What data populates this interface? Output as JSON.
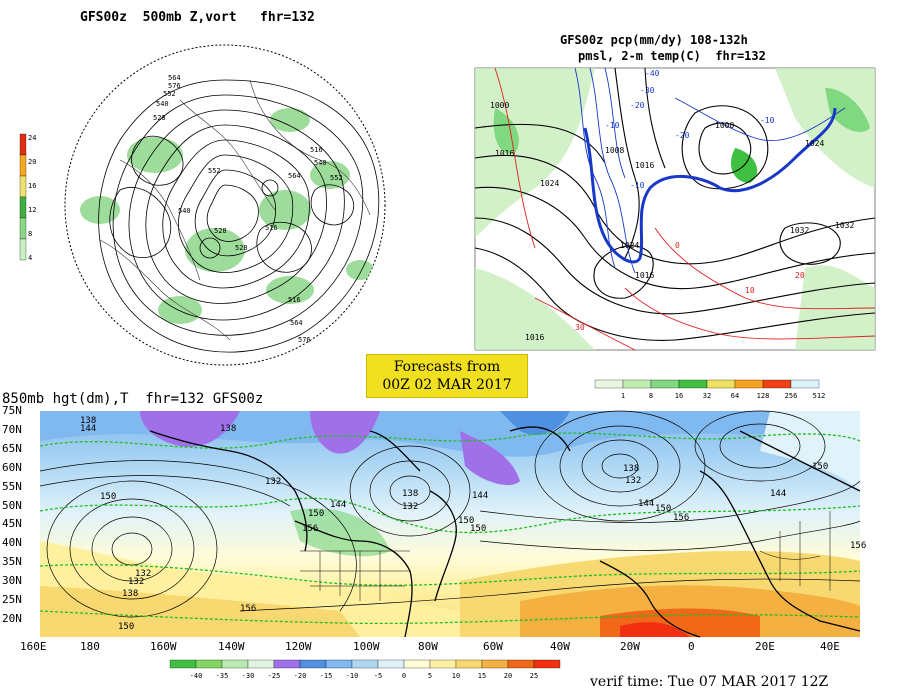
{
  "north_hemisphere_panel": {
    "title": "GFS00z  500mb Z,vort   fhr=132",
    "scale_labels": [
      "24",
      "20",
      "16",
      "12",
      "8",
      "4"
    ],
    "scale_colors": [
      "#e03010",
      "#f8a820",
      "#f0e070",
      "#40b040",
      "#88d888",
      "#c8f0c0"
    ],
    "contour_labels": [
      "576",
      "564",
      "552",
      "540",
      "528",
      "516",
      "564",
      "552",
      "540",
      "528",
      "516",
      "564",
      "576",
      "552",
      "540",
      "516",
      "528"
    ]
  },
  "surface_panel": {
    "title_line1": "GFS00z pcp(mm/dy) 108-132h",
    "title_line2": "pmsl, 2-m temp(C)  fhr=132",
    "scale_labels": [
      "1",
      "8",
      "16",
      "32",
      "64",
      "128",
      "256",
      "512"
    ],
    "scale_colors": [
      "#e8f8e0",
      "#c0ecb0",
      "#80d880",
      "#40c040",
      "#f0e060",
      "#f8a020",
      "#f04018",
      "#d8f4f8"
    ],
    "pressure_labels": [
      "1000",
      "1008",
      "1016",
      "1024",
      "1016",
      "1032",
      "1024",
      "1000",
      "1016",
      "1024",
      "1032",
      "1016"
    ],
    "temp_labels": [
      "-40",
      "-30",
      "-20",
      "-10",
      "0",
      "10",
      "20",
      "30",
      "-10",
      "-20",
      "-10"
    ]
  },
  "forecast_box": {
    "line1": "Forecasts from",
    "line2": "00Z 02 MAR 2017"
  },
  "main_panel": {
    "title": "850mb hgt(dm),T  fhr=132 GFS00z",
    "lat_labels": [
      "75N",
      "70N",
      "65N",
      "60N",
      "55N",
      "50N",
      "45N",
      "40N",
      "35N",
      "30N",
      "25N",
      "20N"
    ],
    "lon_labels": [
      "160E",
      "180",
      "160W",
      "140W",
      "120W",
      "100W",
      "80W",
      "60W",
      "40W",
      "20W",
      "0",
      "20E",
      "40E"
    ],
    "height_labels": [
      "138",
      "144",
      "132",
      "132",
      "138",
      "150",
      "132",
      "138",
      "144",
      "150",
      "156",
      "132",
      "138",
      "144",
      "150",
      "150",
      "132",
      "138",
      "144",
      "150",
      "156",
      "156",
      "144",
      "150",
      "156",
      "150"
    ],
    "temp_scale_labels": [
      "-40",
      "-35",
      "-30",
      "-25",
      "-20",
      "-15",
      "-10",
      "-5",
      "0",
      "5",
      "10",
      "15",
      "20",
      "25"
    ],
    "temp_scale_colors": [
      "#40c040",
      "#80d860",
      "#b8ecb0",
      "#e0f4e0",
      "#a070e8",
      "#5090e0",
      "#80b8f0",
      "#b0d8f4",
      "#e0f2fa",
      "#fffcd8",
      "#fff0a0",
      "#f8d870",
      "#f4b040",
      "#f06818",
      "#f03010"
    ],
    "verif_time": "verif time: Tue 07 MAR 2017 12Z"
  },
  "colors": {
    "contour_black": "#000000",
    "contour_blue": "#1838c8",
    "contour_red": "#e02020",
    "dash_green": "#20c020"
  }
}
